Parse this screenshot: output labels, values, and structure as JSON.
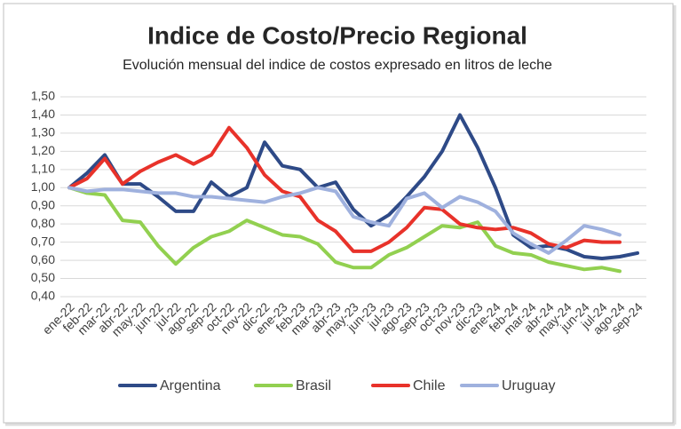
{
  "chart_data": {
    "type": "line",
    "title": "Indice de Costo/Precio Regional",
    "subtitle": "Evolución mensual del indice de costos expresado en litros de leche",
    "categories": [
      "ene-22",
      "feb-22",
      "mar-22",
      "abr-22",
      "may-22",
      "jun-22",
      "jul-22",
      "ago-22",
      "sep-22",
      "oct-22",
      "nov-22",
      "dic-22",
      "ene-23",
      "feb-23",
      "mar-23",
      "abr-23",
      "may-23",
      "jun-23",
      "jul-23",
      "ago-23",
      "sep-23",
      "oct-23",
      "nov-23",
      "dic-23",
      "ene-24",
      "feb-24",
      "mar-24",
      "abr-24",
      "may-24",
      "jun-24",
      "jul-24",
      "ago-24",
      "sep-24"
    ],
    "series": [
      {
        "name": "Argentina",
        "color": "#2e4a87",
        "values": [
          1.0,
          1.08,
          1.18,
          1.02,
          1.02,
          0.95,
          0.87,
          0.87,
          1.03,
          0.95,
          1.0,
          1.25,
          1.12,
          1.1,
          1.0,
          1.03,
          0.88,
          0.79,
          0.85,
          0.95,
          1.06,
          1.2,
          1.4,
          1.22,
          1.0,
          0.74,
          0.67,
          0.68,
          0.66,
          0.62,
          0.61,
          0.62,
          0.64
        ]
      },
      {
        "name": "Brasil",
        "color": "#92d050",
        "values": [
          1.0,
          0.97,
          0.96,
          0.82,
          0.81,
          0.68,
          0.58,
          0.67,
          0.73,
          0.76,
          0.82,
          0.78,
          0.74,
          0.73,
          0.69,
          0.59,
          0.56,
          0.56,
          0.63,
          0.67,
          0.73,
          0.79,
          0.78,
          0.81,
          0.68,
          0.64,
          0.63,
          0.59,
          0.57,
          0.55,
          0.56,
          0.54,
          null
        ]
      },
      {
        "name": "Chile",
        "color": "#e8322a",
        "values": [
          1.0,
          1.05,
          1.16,
          1.02,
          1.09,
          1.14,
          1.18,
          1.13,
          1.18,
          1.33,
          1.22,
          1.07,
          0.98,
          0.95,
          0.82,
          0.76,
          0.65,
          0.65,
          0.7,
          0.78,
          0.89,
          0.88,
          0.8,
          0.78,
          0.77,
          0.78,
          0.75,
          0.69,
          0.67,
          0.71,
          0.7,
          0.7,
          null
        ]
      },
      {
        "name": "Uruguay",
        "color": "#9fb1de",
        "values": [
          1.0,
          0.98,
          0.99,
          0.99,
          0.98,
          0.97,
          0.97,
          0.95,
          0.95,
          0.94,
          0.93,
          0.92,
          0.95,
          0.97,
          1.0,
          0.98,
          0.84,
          0.81,
          0.79,
          0.94,
          0.97,
          0.89,
          0.95,
          0.92,
          0.87,
          0.75,
          0.69,
          0.64,
          0.71,
          0.79,
          0.77,
          0.74,
          null
        ]
      }
    ],
    "ylim": [
      0.4,
      1.5
    ],
    "yticks": [
      {
        "value": 0.4,
        "label": "0,40"
      },
      {
        "value": 0.5,
        "label": "0,50"
      },
      {
        "value": 0.6,
        "label": "0,60"
      },
      {
        "value": 0.7,
        "label": "0,70"
      },
      {
        "value": 0.8,
        "label": "0,80"
      },
      {
        "value": 0.9,
        "label": "0,90"
      },
      {
        "value": 1.0,
        "label": "1,00"
      },
      {
        "value": 1.1,
        "label": "1,10"
      },
      {
        "value": 1.2,
        "label": "1,20"
      },
      {
        "value": 1.3,
        "label": "1,30"
      },
      {
        "value": 1.4,
        "label": "1,40"
      },
      {
        "value": 1.5,
        "label": "1,50"
      }
    ],
    "grid": true,
    "legend": "bottom"
  }
}
